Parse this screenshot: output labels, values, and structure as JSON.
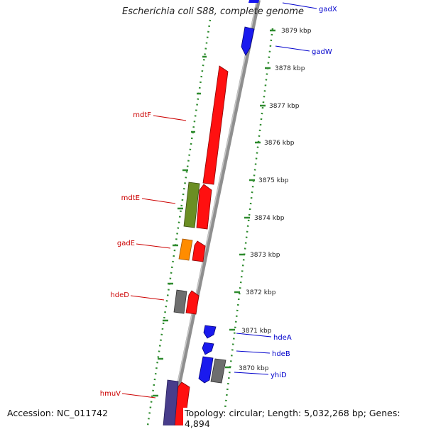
{
  "title": "Escherichia coli S88, complete genome",
  "footer": {
    "accession": "Accession: NC_011742",
    "topology": "Topology: circular; Length: 5,032,268 bp; Genes: 4,894"
  },
  "colors": {
    "backbone": "#8f8f8f",
    "ring": "#2e8b2e",
    "reverse_label": "#cc0000",
    "forward_label": "#0000cc"
  },
  "scale_ticks": [
    "3879 kbp",
    "3878 kbp",
    "3877 kbp",
    "3876 kbp",
    "3875 kbp",
    "3874 kbp",
    "3873 kbp",
    "3872 kbp",
    "3871 kbp",
    "3870 kbp"
  ],
  "gene_labels": {
    "left": [
      "mdtF",
      "mdtE",
      "gadE",
      "hdeD",
      "hmuV"
    ],
    "right": [
      "gadX",
      "gadW",
      "hdeA",
      "hdeB",
      "yhiD"
    ]
  }
}
